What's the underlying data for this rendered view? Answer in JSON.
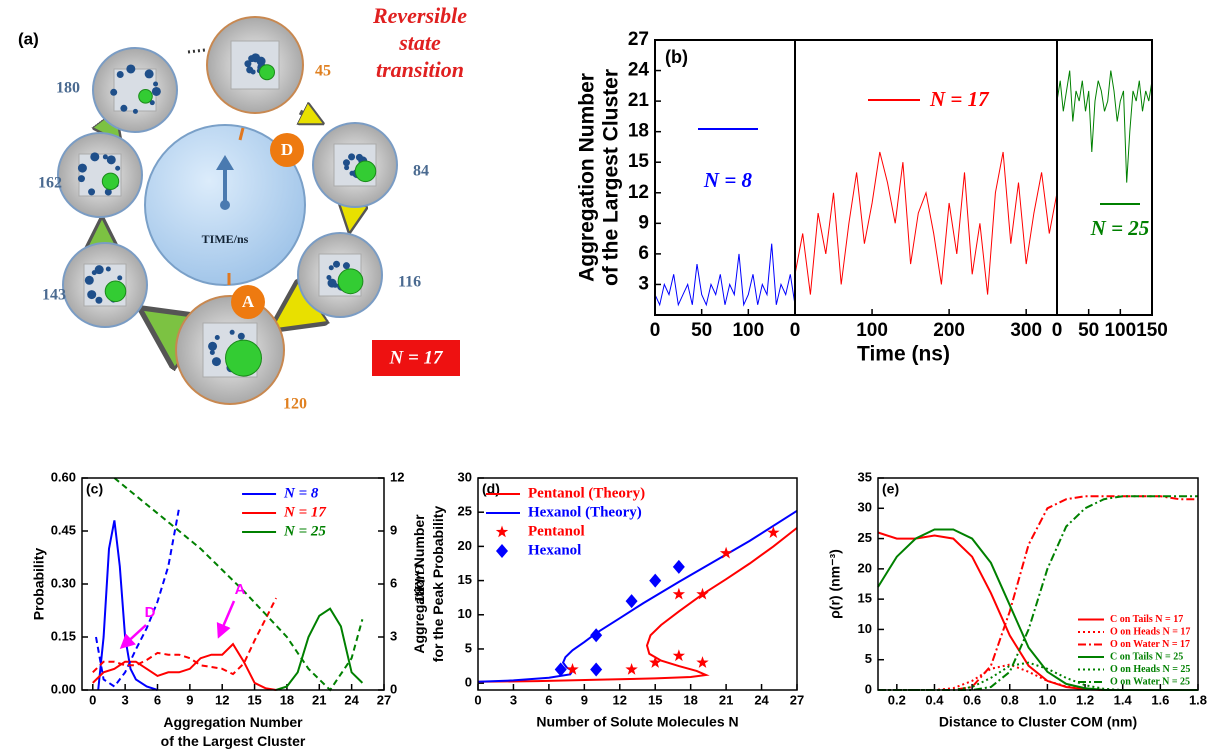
{
  "diagram": {
    "label": "(a)",
    "title_lines": [
      "Reversible",
      "state",
      "transition"
    ],
    "center_label": "TIME/ns",
    "times": [
      "45",
      "84",
      "116",
      "120",
      "143",
      "162",
      "180"
    ],
    "states": [
      "D",
      "A"
    ],
    "n_label": "N = 17"
  },
  "chart_data": [
    {
      "type": "line",
      "label": "(b)",
      "ylabel": [
        "Aggregation Number",
        "of the Largest Cluster"
      ],
      "xlabel": "Time (ns)",
      "ylim": [
        0,
        27
      ],
      "yticks": [
        3,
        6,
        9,
        12,
        15,
        18,
        21,
        24,
        27
      ],
      "panels": [
        {
          "xlim": [
            0,
            150
          ],
          "xticks": [
            0,
            50,
            100
          ],
          "series": [
            {
              "name": "N = 8",
              "color": "#0000ff",
              "x": [
                0,
                5,
                10,
                15,
                20,
                25,
                30,
                35,
                40,
                45,
                50,
                55,
                60,
                65,
                70,
                75,
                80,
                85,
                90,
                95,
                100,
                105,
                110,
                115,
                120,
                125,
                130,
                135,
                140,
                145,
                150
              ],
              "values": [
                2,
                1,
                3,
                2,
                4,
                1,
                2,
                3,
                1,
                5,
                2,
                1,
                3,
                2,
                4,
                1,
                3,
                2,
                6,
                1,
                2,
                4,
                1,
                3,
                2,
                7,
                1,
                3,
                2,
                4,
                1
              ]
            }
          ]
        },
        {
          "xlim": [
            0,
            340
          ],
          "xticks": [
            0,
            100,
            200,
            300
          ],
          "series": [
            {
              "name": "N = 17",
              "color": "#ff0000",
              "x": [
                0,
                10,
                20,
                30,
                40,
                50,
                60,
                70,
                80,
                90,
                100,
                110,
                120,
                130,
                140,
                150,
                160,
                170,
                180,
                190,
                200,
                210,
                220,
                230,
                240,
                250,
                260,
                270,
                280,
                290,
                300,
                310,
                320,
                330,
                340
              ],
              "values": [
                4,
                8,
                2,
                10,
                6,
                12,
                3,
                9,
                14,
                7,
                11,
                16,
                13,
                9,
                15,
                5,
                10,
                12,
                8,
                3,
                11,
                6,
                14,
                4,
                9,
                2,
                12,
                16,
                7,
                13,
                5,
                10,
                14,
                8,
                12
              ]
            }
          ]
        },
        {
          "xlim": [
            0,
            150
          ],
          "xticks": [
            0,
            50,
            100,
            150
          ],
          "series": [
            {
              "name": "N = 25",
              "color": "#008000",
              "x": [
                0,
                5,
                10,
                15,
                20,
                25,
                30,
                35,
                40,
                45,
                50,
                55,
                60,
                65,
                70,
                75,
                80,
                85,
                90,
                95,
                100,
                105,
                110,
                115,
                120,
                125,
                130,
                135,
                140,
                145,
                150
              ],
              "values": [
                21,
                23,
                20,
                22,
                24,
                19,
                22,
                21,
                23,
                20,
                22,
                16,
                21,
                23,
                22,
                20,
                21,
                24,
                22,
                19,
                21,
                22,
                13,
                18,
                22,
                21,
                23,
                20,
                22,
                21,
                23
              ]
            }
          ]
        }
      ]
    },
    {
      "type": "line",
      "label": "(c)",
      "ylabel": "Probability",
      "y2label": "G/kBT",
      "xlabel": [
        "Aggregation Number",
        "of the Largest Cluster"
      ],
      "legend": "upper right",
      "xlim": [
        -1,
        27
      ],
      "xticks": [
        0,
        3,
        6,
        9,
        12,
        15,
        18,
        21,
        24,
        27
      ],
      "ylim": [
        0,
        0.6
      ],
      "yticks": [
        {
          "value": 0,
          "label": "0.00"
        },
        0.15,
        {
          "value": 0.3,
          "label": "0.30"
        },
        0.45,
        {
          "value": 0.6,
          "label": "0.60"
        }
      ],
      "y2lim": [
        0,
        12
      ],
      "y2ticks": [
        0,
        3,
        6,
        9,
        12
      ],
      "annotations": [
        {
          "text": "D",
          "color": "#ff00ff"
        },
        {
          "text": "A",
          "color": "#ff00ff"
        }
      ],
      "series": [
        {
          "name": "N = 8",
          "color": "#0000ff",
          "x": [
            0.5,
            1,
            1.5,
            2,
            2.5,
            3,
            3.5,
            4,
            5,
            6
          ],
          "values": [
            0,
            0.15,
            0.4,
            0.48,
            0.35,
            0.15,
            0.06,
            0.03,
            0.01,
            0
          ]
        },
        {
          "name": "N = 17",
          "color": "#ff0000",
          "x": [
            0,
            1,
            2,
            3,
            4,
            5,
            6,
            7,
            8,
            9,
            10,
            11,
            12,
            13,
            14,
            15,
            16,
            17
          ],
          "values": [
            0.02,
            0.05,
            0.06,
            0.08,
            0.08,
            0.06,
            0.04,
            0.05,
            0.05,
            0.06,
            0.09,
            0.1,
            0.1,
            0.13,
            0.08,
            0.02,
            0.005,
            0
          ]
        },
        {
          "name": "N = 25",
          "color": "#008000",
          "x": [
            17,
            18,
            19,
            20,
            21,
            22,
            23,
            24,
            25
          ],
          "values": [
            0,
            0.01,
            0.05,
            0.15,
            0.21,
            0.23,
            0.18,
            0.05,
            0.02
          ]
        },
        {
          "color": "#0000ff",
          "dash": "dashed",
          "axis": "y2",
          "x": [
            0.3,
            1,
            2,
            3,
            4,
            5,
            6,
            7,
            8
          ],
          "values": [
            3,
            0.6,
            0.2,
            1,
            2.3,
            3.5,
            5,
            7,
            10.3
          ]
        },
        {
          "color": "#ff0000",
          "dash": "dashed",
          "axis": "y2",
          "x": [
            0,
            1,
            2,
            3,
            4,
            5,
            6,
            7,
            8,
            9,
            10,
            11,
            12,
            13,
            14,
            15,
            16,
            17
          ],
          "values": [
            1,
            1.6,
            1.6,
            1.4,
            1.4,
            1.7,
            2.1,
            2,
            2,
            1.8,
            1.4,
            1.3,
            1.2,
            0.9,
            1.5,
            2.8,
            4,
            5.2
          ]
        },
        {
          "color": "#008000",
          "dash": "dashed",
          "axis": "y2",
          "x": [
            2,
            4,
            6,
            8,
            10,
            12,
            14,
            16,
            18,
            20,
            22,
            24,
            25
          ],
          "values": [
            12,
            11,
            10,
            9,
            8,
            6.8,
            5.6,
            4.3,
            3,
            1.2,
            0,
            1.8,
            4
          ]
        }
      ]
    },
    {
      "type": "line",
      "label": "(d)",
      "ylabel": [
        "Aggregation Number",
        "for the Peak Probability"
      ],
      "xlabel": "Number of Solute Molecules N",
      "legend": "upper left",
      "xlim": [
        0,
        27
      ],
      "xticks": [
        0,
        3,
        6,
        9,
        12,
        15,
        18,
        21,
        24,
        27
      ],
      "ylim": [
        -1,
        30
      ],
      "yticks": [
        0,
        5,
        10,
        15,
        20,
        25,
        30
      ],
      "series": [
        {
          "name": "Pentanol (Theory)",
          "color": "#ff0000",
          "x": [
            0,
            5,
            10,
            15,
            18,
            19.3,
            18.5,
            17,
            15.5,
            14.5,
            14.3,
            14.6,
            15.5,
            17,
            19,
            21,
            23,
            25,
            27
          ],
          "values": [
            0.2,
            0.3,
            0.5,
            0.7,
            0.9,
            1.2,
            1.8,
            2.5,
            3.3,
            4.3,
            5.5,
            7,
            8.5,
            10.5,
            13,
            15.2,
            17.5,
            20,
            22.7
          ]
        },
        {
          "name": "Hexanol (Theory)",
          "color": "#0000ff",
          "x": [
            0,
            3,
            6,
            7.8,
            8,
            7.5,
            7.2,
            7.4,
            8,
            9,
            10,
            12,
            14,
            17,
            20,
            23,
            27
          ],
          "values": [
            0.2,
            0.4,
            0.8,
            1.3,
            1.8,
            2.3,
            3,
            3.8,
            4.8,
            6,
            7.3,
            9.5,
            11.7,
            14.8,
            17.8,
            20.8,
            25.2
          ]
        },
        {
          "name": "Pentanol",
          "color": "#ff0000",
          "marker": "star",
          "x": [
            8,
            13,
            15,
            17,
            19,
            17,
            19,
            21,
            25
          ],
          "values": [
            2,
            2,
            3,
            4,
            3,
            13,
            13,
            19,
            22
          ]
        },
        {
          "name": "Hexanol",
          "color": "#0000ff",
          "marker": "diamond",
          "x": [
            7,
            10,
            10,
            13,
            15,
            17
          ],
          "values": [
            2,
            2,
            7,
            12,
            15,
            17
          ]
        }
      ]
    },
    {
      "type": "line",
      "label": "(e)",
      "ylabel": "ρ(r) (nm⁻³)",
      "xlabel": "Distance to Cluster COM (nm)",
      "legend": "lower right",
      "xlim": [
        0.1,
        1.8
      ],
      "xticks": [
        0.2,
        0.4,
        0.6,
        0.8,
        {
          "value": 1,
          "label": "1.0"
        },
        1.2,
        1.4,
        1.6,
        1.8
      ],
      "ylim": [
        0,
        35
      ],
      "yticks": [
        0,
        5,
        10,
        15,
        20,
        25,
        30,
        35
      ],
      "series": [
        {
          "name": "C on Tails N = 17",
          "color": "#ff0000",
          "x": [
            0.1,
            0.2,
            0.3,
            0.4,
            0.5,
            0.6,
            0.7,
            0.8,
            0.9,
            1,
            1.1,
            1.2,
            1.3,
            1.4,
            1.5,
            1.6,
            1.7,
            1.8
          ],
          "values": [
            26,
            25,
            25,
            25.5,
            25,
            22,
            16,
            9,
            4,
            1.5,
            0.5,
            0.1,
            0,
            0,
            0,
            0,
            0,
            0
          ]
        },
        {
          "name": "O on Heads N = 17",
          "color": "#ff0000",
          "dash": "dotted",
          "x": [
            0.1,
            0.2,
            0.3,
            0.4,
            0.5,
            0.6,
            0.7,
            0.8,
            0.9,
            1,
            1.1,
            1.2,
            1.3,
            1.4,
            1.5,
            1.6,
            1.7,
            1.8
          ],
          "values": [
            0,
            0,
            0,
            0,
            0.3,
            1.5,
            3.5,
            4.2,
            3,
            1.5,
            0.6,
            0.2,
            0,
            0,
            0,
            0,
            0,
            0
          ]
        },
        {
          "name": "O on Water N = 17",
          "color": "#ff0000",
          "dash": "dashdot",
          "x": [
            0.1,
            0.2,
            0.3,
            0.4,
            0.5,
            0.6,
            0.7,
            0.8,
            0.9,
            1,
            1.1,
            1.2,
            1.3,
            1.4,
            1.5,
            1.6,
            1.7,
            1.8
          ],
          "values": [
            0,
            0,
            0,
            0,
            0,
            0.5,
            4,
            13,
            24,
            30,
            31.5,
            32,
            32,
            32,
            32,
            32,
            31.5,
            31.5
          ]
        },
        {
          "name": "C on Tails N = 25",
          "color": "#008000",
          "x": [
            0.1,
            0.2,
            0.3,
            0.4,
            0.5,
            0.6,
            0.7,
            0.8,
            0.9,
            1,
            1.1,
            1.2,
            1.3,
            1.4,
            1.5,
            1.6,
            1.7,
            1.8
          ],
          "values": [
            17,
            22,
            25,
            26.5,
            26.5,
            25,
            21,
            14,
            7,
            3,
            1,
            0.3,
            0,
            0,
            0,
            0,
            0,
            0
          ]
        },
        {
          "name": "O on Heads N = 25",
          "color": "#008000",
          "dash": "dotted",
          "x": [
            0.1,
            0.2,
            0.3,
            0.4,
            0.5,
            0.6,
            0.7,
            0.8,
            0.9,
            1,
            1.1,
            1.2,
            1.3,
            1.4,
            1.5,
            1.6,
            1.7,
            1.8
          ],
          "values": [
            0,
            0,
            0,
            0,
            0,
            0.5,
            2,
            4,
            4.5,
            3.5,
            2,
            0.8,
            0.2,
            0,
            0,
            0,
            0,
            0
          ]
        },
        {
          "name": "O on Water N = 25",
          "color": "#008000",
          "dash": "dashdot",
          "x": [
            0.1,
            0.2,
            0.3,
            0.4,
            0.5,
            0.6,
            0.7,
            0.8,
            0.9,
            1,
            1.1,
            1.2,
            1.3,
            1.4,
            1.5,
            1.6,
            1.7,
            1.8
          ],
          "values": [
            0,
            0,
            0,
            0,
            0,
            0,
            0.5,
            3,
            10,
            20,
            27,
            30,
            31.5,
            32,
            32,
            32,
            32,
            32
          ]
        }
      ]
    }
  ]
}
